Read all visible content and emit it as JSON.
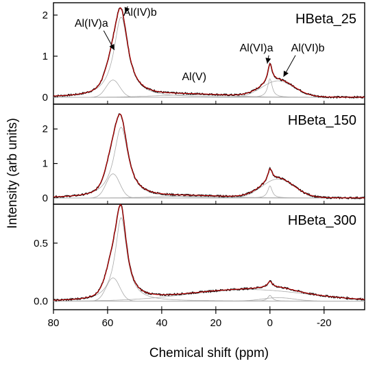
{
  "chart_data": {
    "type": "line",
    "xlabel": "Chemical shift (ppm)",
    "ylabel": "Intensity (arb units)",
    "xlim": [
      80,
      -35
    ],
    "x_ticks": [
      80,
      60,
      40,
      20,
      0,
      -20
    ],
    "x_tick_labels": [
      "80",
      "60",
      "40",
      "20",
      "0",
      "-20"
    ],
    "colors": {
      "experimental": "#111111",
      "fit": "#c00000",
      "components": "#a8a8a8",
      "frame": "#000000"
    },
    "panels": [
      {
        "title": "HBeta_25",
        "ylim": [
          -0.1,
          2.2
        ],
        "y_ticks": [
          0,
          1,
          2
        ],
        "y_tick_labels": [
          "0",
          "1",
          "2"
        ],
        "peaks": [
          {
            "center": 58,
            "width": 2.5,
            "height": 0.42,
            "shape": "gauss"
          },
          {
            "center": 55,
            "width": 3.2,
            "height": 1.95,
            "shape": "lorentz"
          },
          {
            "center": 28,
            "width": 14,
            "height": 0.06,
            "shape": "gauss"
          },
          {
            "center": 0,
            "width": 1.0,
            "height": 0.45,
            "shape": "lorentz"
          },
          {
            "center": -3,
            "width": 6,
            "height": 0.4,
            "shape": "gauss"
          }
        ],
        "annotations": [
          {
            "label": "Al(IV)a",
            "text_x": 66,
            "text_y": 1.72,
            "arrow_to_x": 57.5,
            "arrow_to_y": 1.15
          },
          {
            "label": "Al(IV)b",
            "text_x": 48,
            "text_y": 1.98,
            "arrow_to_x": 53.5,
            "arrow_to_y": 2.05
          },
          {
            "label": "Al(V)",
            "text_x": 28,
            "text_y": 0.42,
            "arrow_to_x": null,
            "arrow_to_y": null
          },
          {
            "label": "Al(VI)a",
            "text_x": 5,
            "text_y": 1.12,
            "arrow_to_x": 1.0,
            "arrow_to_y": 0.82
          },
          {
            "label": "Al(VI)b",
            "text_x": -14,
            "text_y": 1.12,
            "arrow_to_x": -5.0,
            "arrow_to_y": 0.5
          }
        ]
      },
      {
        "title": "HBeta_150",
        "ylim": [
          -0.1,
          2.6
        ],
        "y_ticks": [
          0,
          1,
          2
        ],
        "y_tick_labels": [
          "0",
          "1",
          "2"
        ],
        "peaks": [
          {
            "center": 58,
            "width": 2.5,
            "height": 0.7,
            "shape": "gauss"
          },
          {
            "center": 55,
            "width": 3.2,
            "height": 2.05,
            "shape": "lorentz"
          },
          {
            "center": 28,
            "width": 14,
            "height": 0.05,
            "shape": "gauss"
          },
          {
            "center": 0,
            "width": 1.0,
            "height": 0.35,
            "shape": "lorentz"
          },
          {
            "center": -3,
            "width": 6,
            "height": 0.55,
            "shape": "gauss"
          }
        ],
        "annotations": []
      },
      {
        "title": "HBeta_300",
        "ylim": [
          -0.05,
          0.8
        ],
        "y_ticks": [
          0.0,
          0.5
        ],
        "y_tick_labels": [
          "0.0",
          "0.5"
        ],
        "peaks": [
          {
            "center": 58,
            "width": 2.5,
            "height": 0.2,
            "shape": "gauss"
          },
          {
            "center": 55,
            "width": 2.6,
            "height": 0.72,
            "shape": "lorentz"
          },
          {
            "center": 8,
            "width": 22,
            "height": 0.1,
            "shape": "gauss"
          },
          {
            "center": 0,
            "width": 1.0,
            "height": 0.05,
            "shape": "lorentz"
          },
          {
            "center": -3,
            "width": 6,
            "height": 0.03,
            "shape": "gauss"
          }
        ],
        "annotations": []
      }
    ]
  }
}
